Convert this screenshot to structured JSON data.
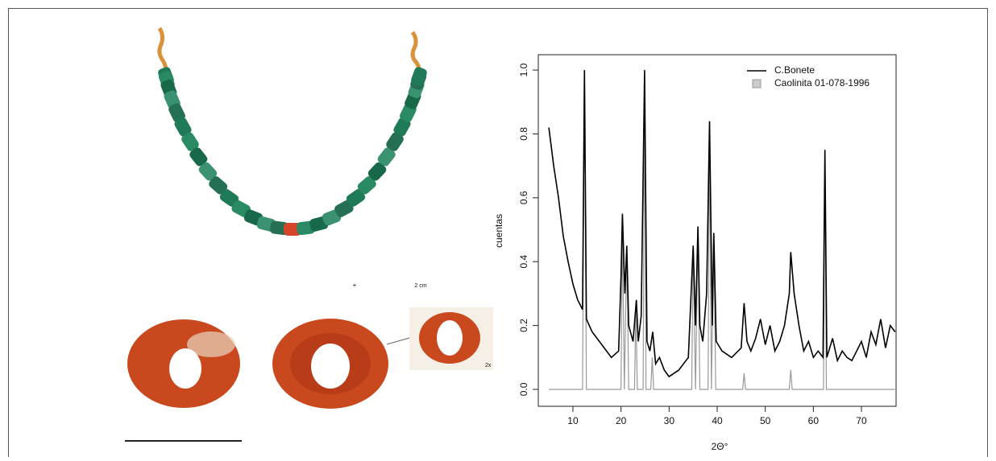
{
  "photos": {
    "marker": "+",
    "scale_note": "2 cm",
    "zoom_note": "2x"
  },
  "chart_data": {
    "type": "line",
    "x_label": "2Θ°",
    "y_label": "cuentas",
    "xlim": [
      2.8,
      77.2
    ],
    "ylim": [
      -0.053,
      1.048
    ],
    "xticks": [
      10,
      20,
      30,
      40,
      50,
      60,
      70
    ],
    "yticks": [
      {
        "value": 0,
        "label": "0.0"
      },
      {
        "value": 0.2,
        "label": "0.2"
      },
      {
        "value": 0.4,
        "label": "0.4"
      },
      {
        "value": 0.6,
        "label": "0.6"
      },
      {
        "value": 0.8,
        "label": "0.8"
      },
      {
        "value": 1,
        "label": "1.0"
      }
    ],
    "legend": "top-right",
    "series": [
      {
        "name": "C.Bonete",
        "color": "#000000",
        "x": [
          5,
          6,
          7,
          8,
          9,
          10,
          11,
          12,
          12.4,
          12.8,
          14,
          16,
          18,
          19.5,
          20,
          20.3,
          20.8,
          21.2,
          21.6,
          22.5,
          23.2,
          23.6,
          24.2,
          24.9,
          25.4,
          26,
          26.6,
          27.2,
          28,
          29,
          30,
          31,
          32,
          33,
          34,
          35,
          35.5,
          36,
          36.4,
          37,
          37.8,
          38.4,
          39,
          39.3,
          39.8,
          41,
          43,
          45,
          45.6,
          46.2,
          47,
          48,
          49,
          50,
          51,
          52,
          53,
          54,
          55,
          55.3,
          56,
          56.5,
          57,
          58,
          59,
          60,
          61,
          62,
          62.4,
          62.8,
          64,
          65,
          66,
          67,
          68,
          69,
          70,
          71,
          72,
          73,
          74,
          75,
          76,
          77
        ],
        "values": [
          0.82,
          0.7,
          0.6,
          0.48,
          0.4,
          0.33,
          0.28,
          0.25,
          1.0,
          0.22,
          0.18,
          0.14,
          0.1,
          0.12,
          0.35,
          0.55,
          0.3,
          0.45,
          0.2,
          0.15,
          0.28,
          0.15,
          0.23,
          1.0,
          0.15,
          0.12,
          0.18,
          0.08,
          0.1,
          0.06,
          0.04,
          0.05,
          0.06,
          0.08,
          0.1,
          0.45,
          0.2,
          0.51,
          0.2,
          0.15,
          0.3,
          0.84,
          0.2,
          0.49,
          0.15,
          0.12,
          0.1,
          0.13,
          0.27,
          0.15,
          0.12,
          0.16,
          0.22,
          0.14,
          0.2,
          0.12,
          0.15,
          0.2,
          0.3,
          0.43,
          0.3,
          0.25,
          0.2,
          0.12,
          0.15,
          0.1,
          0.12,
          0.1,
          0.75,
          0.1,
          0.16,
          0.09,
          0.12,
          0.1,
          0.09,
          0.12,
          0.15,
          0.1,
          0.18,
          0.14,
          0.22,
          0.13,
          0.2,
          0.18
        ]
      },
      {
        "name": "Caolinita 01-078-1996",
        "color": "#999999",
        "x": [
          5,
          12,
          12.4,
          12.8,
          20,
          20.3,
          20.7,
          21.2,
          21.6,
          22.8,
          23.1,
          23.4,
          24.6,
          24.9,
          25.2,
          26.2,
          26.5,
          26.8,
          34.7,
          35,
          35.5,
          36,
          36.4,
          38.1,
          38.4,
          38.8,
          39.3,
          39.7,
          45.3,
          45.6,
          45.9,
          55,
          55.3,
          55.6,
          62.1,
          62.4,
          62.7,
          77
        ],
        "values": [
          0,
          0,
          1,
          0,
          0,
          0.5,
          0,
          0.45,
          0,
          0,
          0.25,
          0,
          0,
          1,
          0,
          0,
          0.1,
          0,
          0,
          0.45,
          0,
          0.5,
          0,
          0,
          0.84,
          0,
          0.49,
          0,
          0,
          0.05,
          0,
          0,
          0.06,
          0,
          0,
          0.75,
          0,
          0
        ]
      }
    ]
  }
}
